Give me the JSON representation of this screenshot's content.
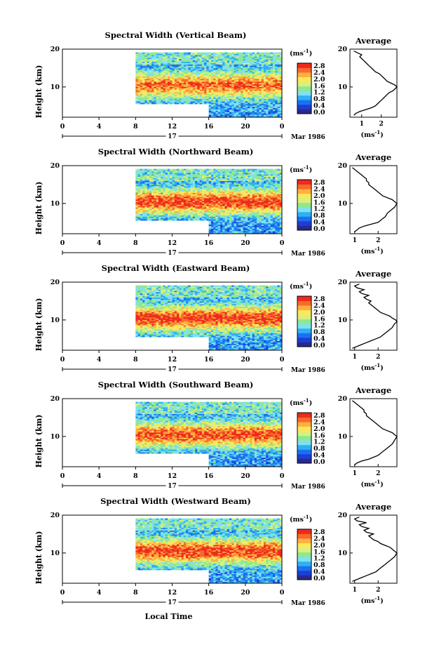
{
  "chart_data": [
    {
      "type": "heatmap",
      "title": "Spectral Width (Vertical Beam)",
      "xlabel": "",
      "ylabel": "Height (km)",
      "xlim": [
        0,
        24
      ],
      "ylim": [
        2,
        20
      ],
      "x_ticks": [
        "0",
        "4",
        "8",
        "12",
        "16",
        "20",
        "0"
      ],
      "y_ticks": [
        "20",
        "10"
      ],
      "date_labels": [
        "17",
        "Mar 1986"
      ],
      "colorbar": {
        "label": "(ms-1)",
        "ticks": [
          "2.8",
          "2.4",
          "2.0",
          "1.6",
          "1.2",
          "0.8",
          "0.4",
          "0.0"
        ],
        "range": [
          0,
          2.8
        ]
      },
      "coverage": {
        "x_start": 8,
        "x_gap_end": 16,
        "y_top": 19,
        "y_bottom_early": 5.5,
        "y_bottom_late": 2
      },
      "description_values": {
        "peak_height_km": 10.5,
        "peak_width": 2.4
      },
      "profile": {
        "title": "Average",
        "xlabel": "(ms-1)",
        "x_ticks": [
          "1",
          "2"
        ],
        "y_ticks": [
          "20",
          "10"
        ],
        "xlim": [
          0.4,
          2.8
        ],
        "heights": [
          2.5,
          3,
          3.5,
          4,
          4.5,
          5,
          5.5,
          6,
          6.5,
          7,
          7.5,
          8,
          8.5,
          9,
          9.5,
          10,
          10.5,
          11,
          11.5,
          12,
          12.5,
          13,
          13.5,
          14,
          14.5,
          15,
          15.5,
          16,
          16.5,
          17,
          17.5,
          18,
          18.5,
          19,
          19.5
        ],
        "values": [
          0.6,
          0.7,
          0.9,
          1.2,
          1.5,
          1.7,
          1.8,
          1.9,
          2.0,
          2.1,
          2.2,
          2.3,
          2.4,
          2.6,
          2.7,
          2.8,
          2.7,
          2.5,
          2.3,
          2.2,
          2.1,
          2.0,
          1.9,
          1.7,
          1.6,
          1.5,
          1.4,
          1.3,
          1.2,
          1.1,
          1.0,
          0.9,
          1.0,
          0.8,
          0.6
        ]
      }
    },
    {
      "type": "heatmap",
      "title": "Spectral Width (Northward Beam)",
      "xlabel": "",
      "ylabel": "Height (km)",
      "xlim": [
        0,
        24
      ],
      "ylim": [
        2,
        20
      ],
      "x_ticks": [
        "0",
        "4",
        "8",
        "12",
        "16",
        "20",
        "0"
      ],
      "y_ticks": [
        "20",
        "10"
      ],
      "date_labels": [
        "17",
        "Mar 1986"
      ],
      "colorbar": {
        "label": "(ms-1)",
        "ticks": [
          "2.8",
          "2.4",
          "2.0",
          "1.6",
          "1.2",
          "0.8",
          "0.4",
          "0.0"
        ],
        "range": [
          0,
          2.8
        ]
      },
      "coverage": {
        "x_start": 8,
        "x_gap_end": 16,
        "y_top": 19,
        "y_bottom_early": 5.5,
        "y_bottom_late": 2
      },
      "description_values": {
        "peak_height_km": 10.5,
        "peak_width": 2.6
      },
      "profile": {
        "title": "Average",
        "xlabel": "(ms-1)",
        "x_ticks": [
          "1",
          "2"
        ],
        "y_ticks": [
          "20",
          "10"
        ],
        "xlim": [
          0.8,
          2.8
        ],
        "heights": [
          2.5,
          3,
          3.5,
          4,
          4.5,
          5,
          5.5,
          6,
          6.5,
          7,
          7.5,
          8,
          8.5,
          9,
          9.5,
          10,
          10.5,
          11,
          11.5,
          12,
          12.5,
          13,
          13.5,
          14,
          14.5,
          15,
          15.5,
          16,
          16.5,
          17,
          17.5,
          18,
          18.5,
          19,
          19.5
        ],
        "values": [
          1.0,
          1.1,
          1.2,
          1.4,
          1.7,
          2.0,
          2.1,
          2.2,
          2.3,
          2.35,
          2.4,
          2.5,
          2.6,
          2.7,
          2.75,
          2.8,
          2.7,
          2.6,
          2.4,
          2.2,
          2.1,
          2.0,
          1.9,
          1.8,
          1.7,
          1.6,
          1.6,
          1.5,
          1.5,
          1.4,
          1.3,
          1.2,
          1.1,
          1.0,
          0.9
        ]
      }
    },
    {
      "type": "heatmap",
      "title": "Spectral Width (Eastward Beam)",
      "xlabel": "",
      "ylabel": "Height (km)",
      "xlim": [
        0,
        24
      ],
      "ylim": [
        2,
        20
      ],
      "x_ticks": [
        "0",
        "4",
        "8",
        "12",
        "16",
        "20",
        "0"
      ],
      "y_ticks": [
        "20",
        "10"
      ],
      "date_labels": [
        "17",
        "Mar 1986"
      ],
      "colorbar": {
        "label": "(ms-1)",
        "ticks": [
          "2.8",
          "2.4",
          "2.0",
          "1.6",
          "1.2",
          "0.8",
          "0.4",
          "0.0"
        ],
        "range": [
          0,
          2.8
        ]
      },
      "coverage": {
        "x_start": 8,
        "x_gap_end": 16,
        "y_top": 19,
        "y_bottom_early": 5.5,
        "y_bottom_late": 2
      },
      "description_values": {
        "peak_height_km": 10.5,
        "peak_width": 2.6
      },
      "profile": {
        "title": "Average",
        "xlabel": "(ms-1)",
        "x_ticks": [
          "1",
          "2"
        ],
        "y_ticks": [
          "20",
          "10"
        ],
        "xlim": [
          0.8,
          2.8
        ],
        "heights": [
          2.5,
          3,
          3.5,
          4,
          4.5,
          5,
          5.5,
          6,
          6.5,
          7,
          7.5,
          8,
          8.5,
          9,
          9.5,
          10,
          10.5,
          11,
          11.5,
          12,
          12.5,
          13,
          13.5,
          14,
          14.5,
          15,
          15.5,
          16,
          16.5,
          17,
          17.5,
          18,
          18.5,
          19,
          19.5
        ],
        "values": [
          0.9,
          1.1,
          1.3,
          1.5,
          1.7,
          1.9,
          2.1,
          2.2,
          2.3,
          2.4,
          2.5,
          2.6,
          2.65,
          2.7,
          2.8,
          2.75,
          2.6,
          2.5,
          2.3,
          2.1,
          2.0,
          1.9,
          1.8,
          1.7,
          1.6,
          1.7,
          1.5,
          1.4,
          1.6,
          1.3,
          1.2,
          1.4,
          1.1,
          1.0,
          1.2
        ]
      }
    },
    {
      "type": "heatmap",
      "title": "Spectral Width (Southward Beam)",
      "xlabel": "",
      "ylabel": "Height (km)",
      "xlim": [
        0,
        24
      ],
      "ylim": [
        2,
        20
      ],
      "x_ticks": [
        "0",
        "4",
        "8",
        "12",
        "16",
        "20",
        "0"
      ],
      "y_ticks": [
        "20",
        "10"
      ],
      "date_labels": [
        "17",
        "Mar 1986"
      ],
      "colorbar": {
        "label": "(ms-1)",
        "ticks": [
          "2.8",
          "2.4",
          "2.0",
          "1.6",
          "1.2",
          "0.8",
          "0.4",
          "0.0"
        ],
        "range": [
          0,
          2.8
        ]
      },
      "coverage": {
        "x_start": 8,
        "x_gap_end": 16,
        "y_top": 19,
        "y_bottom_early": 5.5,
        "y_bottom_late": 2
      },
      "description_values": {
        "peak_height_km": 10.5,
        "peak_width": 2.5
      },
      "profile": {
        "title": "Average",
        "xlabel": "(ms-1)",
        "x_ticks": [
          "1",
          "2"
        ],
        "y_ticks": [
          "20",
          "10"
        ],
        "xlim": [
          0.8,
          2.8
        ],
        "heights": [
          2.5,
          3,
          3.5,
          4,
          4.5,
          5,
          5.5,
          6,
          6.5,
          7,
          7.5,
          8,
          8.5,
          9,
          9.5,
          10,
          10.5,
          11,
          11.5,
          12,
          12.5,
          13,
          13.5,
          14,
          14.5,
          15,
          15.5,
          16,
          16.5,
          17,
          17.5,
          18,
          18.5,
          19,
          19.5
        ],
        "values": [
          1.0,
          1.1,
          1.3,
          1.6,
          1.8,
          2.0,
          2.1,
          2.2,
          2.3,
          2.4,
          2.5,
          2.6,
          2.65,
          2.7,
          2.75,
          2.8,
          2.7,
          2.6,
          2.4,
          2.2,
          2.1,
          2.0,
          1.9,
          1.8,
          1.7,
          1.6,
          1.5,
          1.5,
          1.4,
          1.4,
          1.3,
          1.2,
          1.1,
          1.0,
          0.9
        ]
      }
    },
    {
      "type": "heatmap",
      "title": "Spectral Width (Westward Beam)",
      "xlabel": "Local Time",
      "ylabel": "Height (km)",
      "xlim": [
        0,
        24
      ],
      "ylim": [
        2,
        20
      ],
      "x_ticks": [
        "0",
        "4",
        "8",
        "12",
        "16",
        "20",
        "0"
      ],
      "y_ticks": [
        "20",
        "10"
      ],
      "date_labels": [
        "17",
        "Mar 1986"
      ],
      "colorbar": {
        "label": "(ms-1)",
        "ticks": [
          "2.8",
          "2.4",
          "2.0",
          "1.6",
          "1.2",
          "0.8",
          "0.4",
          "0.0"
        ],
        "range": [
          0,
          2.8
        ]
      },
      "coverage": {
        "x_start": 8,
        "x_gap_end": 16,
        "y_top": 19,
        "y_bottom_early": 5.5,
        "y_bottom_late": 2
      },
      "description_values": {
        "peak_height_km": 10.5,
        "peak_width": 2.6
      },
      "profile": {
        "title": "Average",
        "xlabel": "(ms-1)",
        "x_ticks": [
          "1",
          "2"
        ],
        "y_ticks": [
          "20",
          "10"
        ],
        "xlim": [
          0.8,
          2.8
        ],
        "heights": [
          2.5,
          3,
          3.5,
          4,
          4.5,
          5,
          5.5,
          6,
          6.5,
          7,
          7.5,
          8,
          8.5,
          9,
          9.5,
          10,
          10.5,
          11,
          11.5,
          12,
          12.5,
          13,
          13.5,
          14,
          14.5,
          15,
          15.5,
          16,
          16.5,
          17,
          17.5,
          18,
          18.5,
          19,
          19.5
        ],
        "values": [
          0.9,
          1.1,
          1.3,
          1.5,
          1.7,
          1.9,
          2.0,
          2.1,
          2.2,
          2.3,
          2.4,
          2.5,
          2.6,
          2.7,
          2.75,
          2.8,
          2.7,
          2.6,
          2.5,
          2.3,
          2.1,
          2.0,
          1.8,
          1.7,
          1.6,
          1.8,
          1.5,
          1.4,
          1.6,
          1.3,
          1.2,
          1.5,
          1.1,
          1.0,
          1.2
        ]
      }
    }
  ],
  "colors": {
    "colormap": [
      "#2a2a8a",
      "#1c3fd6",
      "#1e6ff0",
      "#2fb0f5",
      "#7fe1f0",
      "#8ee890",
      "#d9f07a",
      "#fbe85a",
      "#fdb040",
      "#f86a2a",
      "#ee2a1e"
    ]
  }
}
